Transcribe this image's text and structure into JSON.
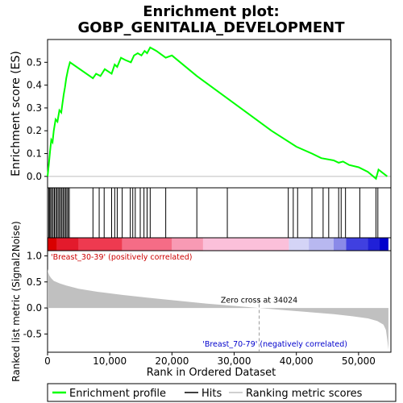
{
  "chart_data": {
    "type": "line",
    "title": "Enrichment plot:",
    "subtitle": "GOBP_GENITALIA_DEVELOPMENT",
    "top_panel": {
      "ylabel": "Enrichment score (ES)",
      "ylim": [
        -0.05,
        0.6
      ],
      "yticks": [
        0.0,
        0.1,
        0.2,
        0.3,
        0.4,
        0.5
      ],
      "ytick_labels": [
        "0.0",
        "0.1",
        "0.2",
        "0.3",
        "0.4",
        "0.5"
      ],
      "series": [
        {
          "name": "Enrichment profile",
          "color": "#00ff00",
          "x": [
            0,
            200,
            400,
            600,
            800,
            1000,
            1300,
            1600,
            1900,
            2200,
            2400,
            2600,
            2800,
            3000,
            3300,
            3600,
            7300,
            7800,
            8500,
            9200,
            10300,
            10800,
            11200,
            11800,
            12500,
            13400,
            13900,
            14500,
            15100,
            15600,
            16000,
            16500,
            17500,
            19000,
            20000,
            24000,
            28000,
            32000,
            36000,
            40000,
            42500,
            44000,
            46000,
            46800,
            47500,
            48500,
            50000,
            51500,
            52800,
            53200,
            54600
          ],
          "y": [
            0.0,
            0.05,
            0.11,
            0.16,
            0.15,
            0.2,
            0.25,
            0.24,
            0.29,
            0.28,
            0.32,
            0.36,
            0.39,
            0.43,
            0.47,
            0.5,
            0.43,
            0.45,
            0.44,
            0.47,
            0.45,
            0.49,
            0.48,
            0.52,
            0.51,
            0.5,
            0.53,
            0.54,
            0.53,
            0.55,
            0.54,
            0.565,
            0.55,
            0.52,
            0.53,
            0.44,
            0.36,
            0.28,
            0.2,
            0.13,
            0.1,
            0.08,
            0.07,
            0.06,
            0.065,
            0.05,
            0.04,
            0.02,
            -0.01,
            0.03,
            0.0
          ]
        }
      ]
    },
    "hits": {
      "name": "Hits",
      "color": "#000000",
      "x": [
        200,
        350,
        500,
        700,
        900,
        1100,
        1300,
        1500,
        1700,
        1900,
        2100,
        2300,
        2500,
        2700,
        2900,
        3100,
        3300,
        3500,
        7300,
        8300,
        9100,
        10300,
        10800,
        11200,
        12000,
        13300,
        13700,
        14100,
        14900,
        15500,
        16000,
        16500,
        19000,
        24000,
        28900,
        38700,
        39500,
        40200,
        42500,
        44300,
        45200,
        46800,
        47200,
        47900,
        50200,
        52800,
        53100
      ]
    },
    "heatmap_bar": {
      "segments": [
        {
          "from": 0,
          "to": 1500,
          "color": "#d90000"
        },
        {
          "from": 1500,
          "to": 5000,
          "color": "#e31a2c"
        },
        {
          "from": 5000,
          "to": 12000,
          "color": "#ee3a50"
        },
        {
          "from": 12000,
          "to": 20000,
          "color": "#f56c86"
        },
        {
          "from": 20000,
          "to": 25000,
          "color": "#f89ab4"
        },
        {
          "from": 25000,
          "to": 38800,
          "color": "#fbc0da"
        },
        {
          "from": 38800,
          "to": 42000,
          "color": "#d4d4f6"
        },
        {
          "from": 42000,
          "to": 46000,
          "color": "#b8b8f0"
        },
        {
          "from": 46000,
          "to": 48000,
          "color": "#8a8ae8"
        },
        {
          "from": 48000,
          "to": 51500,
          "color": "#4040e0"
        },
        {
          "from": 51500,
          "to": 53300,
          "color": "#2020d8"
        },
        {
          "from": 53300,
          "to": 54800,
          "color": "#0000cc"
        }
      ]
    },
    "bottom_panel": {
      "ylabel": "Ranked list metric (Signal2Noise)",
      "ylim": [
        -0.85,
        1.1
      ],
      "yticks": [
        -0.5,
        0.0,
        0.5,
        1.0
      ],
      "ytick_labels": [
        "-0.5",
        "0.0",
        "0.5",
        "1.0"
      ],
      "metric_curve": {
        "name": "Ranking metric scores",
        "color": "#c0c0c0",
        "x": [
          0,
          100,
          300,
          600,
          1000,
          2000,
          3000,
          5000,
          8000,
          12000,
          16000,
          20000,
          25000,
          30000,
          34024,
          38000,
          42000,
          46000,
          49000,
          51500,
          53000,
          54000,
          54400,
          54600,
          54800
        ],
        "y": [
          0.75,
          0.68,
          0.62,
          0.57,
          0.52,
          0.47,
          0.43,
          0.37,
          0.31,
          0.25,
          0.2,
          0.15,
          0.09,
          0.04,
          0.0,
          -0.04,
          -0.08,
          -0.12,
          -0.16,
          -0.2,
          -0.25,
          -0.32,
          -0.42,
          -0.6,
          -0.8
        ]
      },
      "positive_label": "'Breast_30-39' (positively correlated)",
      "negative_label": "'Breast_70-79' (negatively correlated)",
      "zero_cross_label": "Zero cross at 34024",
      "zero_cross_x": 34024
    },
    "xlabel": "Rank in Ordered Dataset",
    "xlim": [
      0,
      55200
    ],
    "xticks": [
      0,
      10000,
      20000,
      30000,
      40000,
      50000
    ],
    "xtick_labels": [
      "0",
      "10,000",
      "20,000",
      "30,000",
      "40,000",
      "50,000"
    ],
    "legend": {
      "placement": "bottom",
      "entries": [
        "Enrichment profile",
        "Hits",
        "Ranking metric scores"
      ]
    }
  }
}
